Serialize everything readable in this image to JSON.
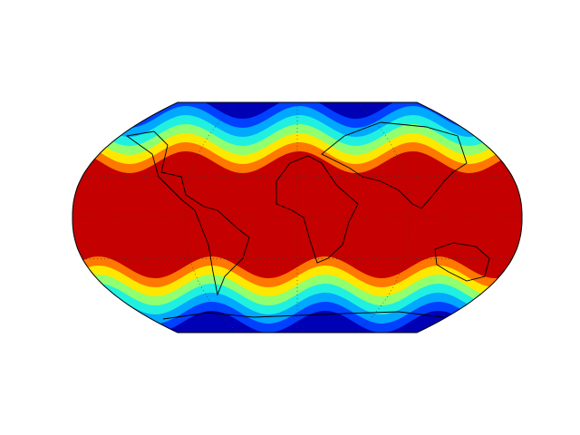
{
  "map": {
    "type": "contourf",
    "colors": [
      "#0000b4",
      "#0040ff",
      "#00a8ff",
      "#20f0e0",
      "#90ff70",
      "#ffe800",
      "#ff7800",
      "#c40000"
    ]
  }
}
